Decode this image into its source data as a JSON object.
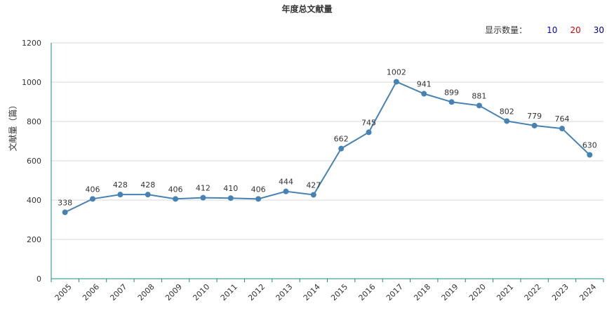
{
  "chart_data": {
    "type": "line",
    "title": "年度总文献量",
    "ylabel": "文献量（篇）",
    "xlabel": "",
    "x": [
      "2005",
      "2006",
      "2007",
      "2008",
      "2009",
      "2010",
      "2011",
      "2012",
      "2013",
      "2014",
      "2015",
      "2016",
      "2017",
      "2018",
      "2019",
      "2020",
      "2021",
      "2022",
      "2023",
      "2024"
    ],
    "series": [
      {
        "values": [
          338,
          406,
          428,
          428,
          406,
          412,
          410,
          406,
          444,
          427,
          662,
          745,
          1002,
          941,
          899,
          881,
          802,
          779,
          764,
          630
        ]
      }
    ],
    "ylim": [
      0,
      1200
    ],
    "yticks": [
      0,
      200,
      400,
      600,
      800,
      1000,
      1200
    ],
    "grid": true,
    "line_color": "#4682b4"
  },
  "display_control": {
    "label": "显示数量：",
    "options": [
      {
        "text": "10",
        "color": "#0000cc"
      },
      {
        "text": "20",
        "color": "#dd0000"
      },
      {
        "text": "30",
        "color": "#000080"
      }
    ]
  }
}
